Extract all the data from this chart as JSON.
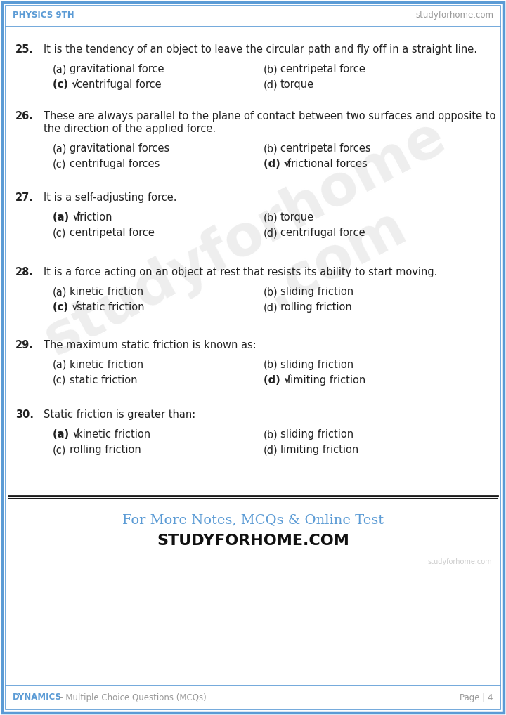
{
  "header_left": "PHYSICS 9TH",
  "header_right": "studyforhome.com",
  "footer_left_colored": "DYNAMICS",
  "footer_left_rest": " – Multiple Choice Questions (MCQs)",
  "footer_right": "Page | 4",
  "promo_line1": "For More Notes, MCQs & Online Test",
  "promo_line2": "STUDYFORHOME.COM",
  "promo_watermark": "studyforhome.com",
  "border_color": "#5b9bd5",
  "text_color": "#222222",
  "questions": [
    {
      "num": "25.",
      "text": "It is the tendency of an object to leave the circular path and fly off in a straight line.",
      "multiline": false,
      "options": [
        {
          "label": "(a)",
          "text": "gravitational force",
          "correct": false
        },
        {
          "label": "(b)",
          "text": "centripetal force",
          "correct": false
        },
        {
          "label": "(c)",
          "text": "centrifugal force",
          "correct": true
        },
        {
          "label": "(d)",
          "text": "torque",
          "correct": false
        }
      ]
    },
    {
      "num": "26.",
      "text": "These are always parallel to the plane of contact between two surfaces and opposite to\nthe direction of the applied force.",
      "multiline": true,
      "options": [
        {
          "label": "(a)",
          "text": "gravitational forces",
          "correct": false
        },
        {
          "label": "(b)",
          "text": "centripetal forces",
          "correct": false
        },
        {
          "label": "(c)",
          "text": "centrifugal forces",
          "correct": false
        },
        {
          "label": "(d)",
          "text": "frictional forces",
          "correct": true
        }
      ]
    },
    {
      "num": "27.",
      "text": "It is a self-adjusting force.",
      "multiline": false,
      "options": [
        {
          "label": "(a)",
          "text": "friction",
          "correct": true
        },
        {
          "label": "(b)",
          "text": "torque",
          "correct": false
        },
        {
          "label": "(c)",
          "text": "centripetal force",
          "correct": false
        },
        {
          "label": "(d)",
          "text": "centrifugal force",
          "correct": false
        }
      ]
    },
    {
      "num": "28.",
      "text": "It is a force acting on an object at rest that resists its ability to start moving.",
      "multiline": false,
      "options": [
        {
          "label": "(a)",
          "text": "kinetic friction",
          "correct": false
        },
        {
          "label": "(b)",
          "text": "sliding friction",
          "correct": false
        },
        {
          "label": "(c)",
          "text": "static friction",
          "correct": true
        },
        {
          "label": "(d)",
          "text": "rolling friction",
          "correct": false
        }
      ]
    },
    {
      "num": "29.",
      "text": "The maximum static friction is known as:",
      "multiline": false,
      "options": [
        {
          "label": "(a)",
          "text": "kinetic friction",
          "correct": false
        },
        {
          "label": "(b)",
          "text": "sliding friction",
          "correct": false
        },
        {
          "label": "(c)",
          "text": "static friction",
          "correct": false
        },
        {
          "label": "(d)",
          "text": "limiting friction",
          "correct": true
        }
      ]
    },
    {
      "num": "30.",
      "text": "Static friction is greater than:",
      "multiline": false,
      "options": [
        {
          "label": "(a)",
          "text": "kinetic friction",
          "correct": true
        },
        {
          "label": "(b)",
          "text": "sliding friction",
          "correct": false
        },
        {
          "label": "(c)",
          "text": "rolling friction",
          "correct": false
        },
        {
          "label": "(d)",
          "text": "limiting friction",
          "correct": false
        }
      ]
    }
  ]
}
